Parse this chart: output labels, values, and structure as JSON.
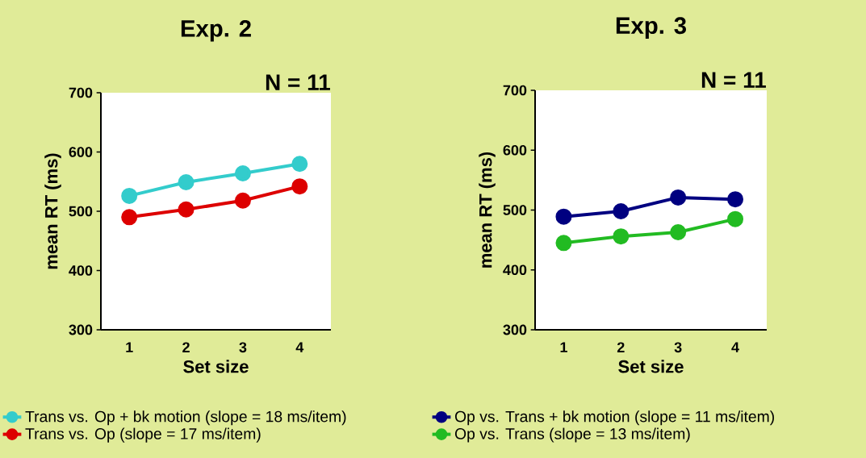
{
  "chart_data": [
    {
      "type": "line",
      "title": "Exp. 2",
      "annotations": [
        "N = 11"
      ],
      "xlabel": "Set size",
      "ylabel": "mean RT (ms)",
      "categories": [
        "1",
        "2",
        "3",
        "4"
      ],
      "ylim": [
        300,
        700
      ],
      "yticks": [
        300,
        400,
        500,
        600,
        700
      ],
      "marker": "circle",
      "legend": "bottom",
      "series": [
        {
          "name": "Trans vs. Op + bk motion (slope = 18 ms/item)",
          "color": "#33cccc",
          "values": [
            526,
            549,
            564,
            580
          ]
        },
        {
          "name": "Trans vs. Op (slope = 17 ms/item)",
          "color": "#dd0000",
          "values": [
            490,
            503,
            518,
            542
          ]
        }
      ]
    },
    {
      "type": "line",
      "title": "Exp. 3",
      "annotations": [
        "N = 11"
      ],
      "xlabel": "Set size",
      "ylabel": "mean RT (ms)",
      "categories": [
        "1",
        "2",
        "3",
        "4"
      ],
      "ylim": [
        300,
        700
      ],
      "yticks": [
        300,
        400,
        500,
        600,
        700
      ],
      "marker": "circle",
      "legend": "bottom",
      "series": [
        {
          "name": "Op vs. Trans + bk motion (slope = 11 ms/item)",
          "color": "#000080",
          "values": [
            489,
            498,
            521,
            518
          ]
        },
        {
          "name": "Op vs. Trans (slope = 13 ms/item)",
          "color": "#22bb22",
          "values": [
            445,
            456,
            463,
            485
          ]
        }
      ]
    }
  ]
}
